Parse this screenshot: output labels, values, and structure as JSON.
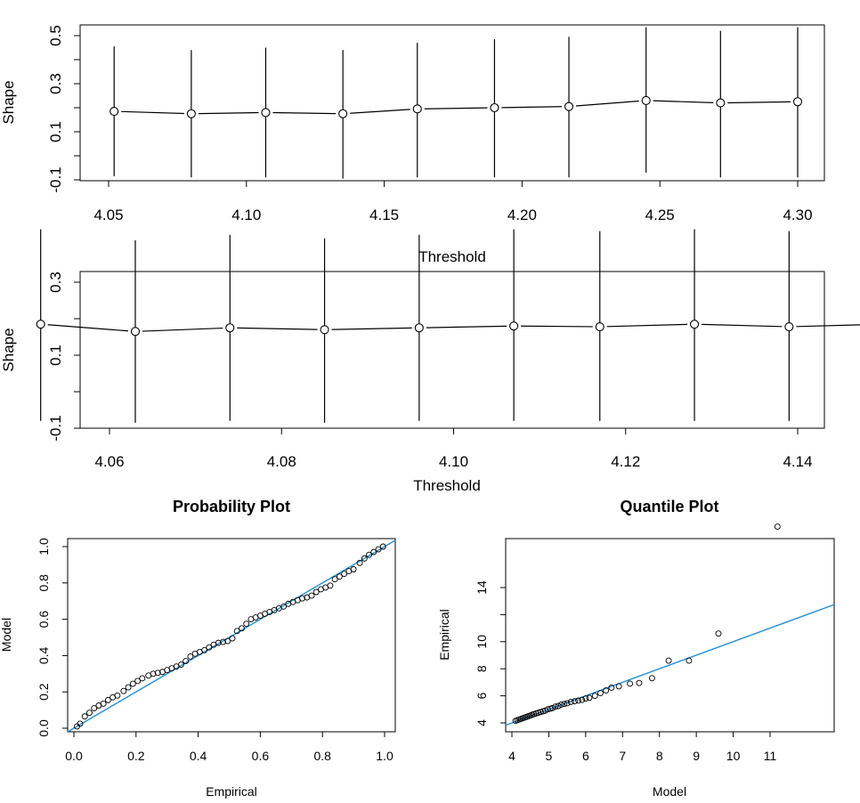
{
  "colors": {
    "fit_line": "#1f8fd6",
    "axis": "#000000",
    "background": "#ffffff"
  },
  "chart_data": [
    {
      "type": "scatter",
      "subtype": "threshold-parameter-stability",
      "title": "",
      "xlabel": "Threshold",
      "ylabel": "Shape",
      "xlim": [
        4.05,
        4.3
      ],
      "ylim": [
        -0.1,
        0.5
      ],
      "x_ticks": [
        "4.05",
        "4.10",
        "4.15",
        "4.20",
        "4.25",
        "4.30"
      ],
      "y_ticks": [
        "-0.1",
        "0.1",
        "0.3",
        "0.5"
      ],
      "points": [
        {
          "x": 4.052,
          "y": 0.185,
          "lower": -0.085,
          "upper": 0.455
        },
        {
          "x": 4.08,
          "y": 0.175,
          "lower": -0.09,
          "upper": 0.44
        },
        {
          "x": 4.107,
          "y": 0.18,
          "lower": -0.09,
          "upper": 0.45
        },
        {
          "x": 4.135,
          "y": 0.175,
          "lower": -0.095,
          "upper": 0.44
        },
        {
          "x": 4.162,
          "y": 0.195,
          "lower": -0.09,
          "upper": 0.47
        },
        {
          "x": 4.19,
          "y": 0.2,
          "lower": -0.09,
          "upper": 0.485
        },
        {
          "x": 4.217,
          "y": 0.205,
          "lower": -0.09,
          "upper": 0.495
        },
        {
          "x": 4.245,
          "y": 0.23,
          "lower": -0.07,
          "upper": 0.535
        },
        {
          "x": 4.272,
          "y": 0.22,
          "lower": -0.09,
          "upper": 0.52
        },
        {
          "x": 4.3,
          "y": 0.225,
          "lower": -0.09,
          "upper": 0.535
        }
      ]
    },
    {
      "type": "scatter",
      "subtype": "threshold-parameter-stability",
      "title": "",
      "xlabel": "Threshold",
      "ylabel": "Shape",
      "xlim": [
        4.05,
        4.15
      ],
      "ylim": [
        -0.1,
        0.45
      ],
      "x_ticks": [
        "4.06",
        "4.08",
        "4.10",
        "4.12",
        "4.14"
      ],
      "y_ticks": [
        "-0.1",
        "0.1",
        "0.3"
      ],
      "points": [
        {
          "x": 4.052,
          "y": 0.185,
          "lower": -0.08,
          "upper": 0.445
        },
        {
          "x": 4.063,
          "y": 0.165,
          "lower": -0.085,
          "upper": 0.415
        },
        {
          "x": 4.074,
          "y": 0.175,
          "lower": -0.08,
          "upper": 0.43
        },
        {
          "x": 4.085,
          "y": 0.17,
          "lower": -0.085,
          "upper": 0.42
        },
        {
          "x": 4.096,
          "y": 0.175,
          "lower": -0.08,
          "upper": 0.43
        },
        {
          "x": 4.107,
          "y": 0.18,
          "lower": -0.08,
          "upper": 0.445
        },
        {
          "x": 4.117,
          "y": 0.178,
          "lower": -0.08,
          "upper": 0.44
        },
        {
          "x": 4.128,
          "y": 0.185,
          "lower": -0.08,
          "upper": 0.445
        },
        {
          "x": 4.139,
          "y": 0.178,
          "lower": -0.08,
          "upper": 0.44
        },
        {
          "x": 4.15,
          "y": 0.185,
          "lower": -0.08,
          "upper": 0.45
        }
      ]
    },
    {
      "type": "scatter",
      "subtype": "probability-plot",
      "title": "Probability Plot",
      "xlabel": "Empirical",
      "ylabel": "Model",
      "xlim": [
        -0.02,
        1.04
      ],
      "ylim": [
        -0.02,
        1.04
      ],
      "x_ticks": [
        "0.0",
        "0.2",
        "0.4",
        "0.6",
        "0.8",
        "1.0"
      ],
      "y_ticks": [
        "0.0",
        "0.2",
        "0.4",
        "0.6",
        "0.8",
        "1.0"
      ],
      "reference_line": {
        "intercept": 0,
        "slope": 1
      },
      "points": [
        {
          "x": 0.01,
          "y": 0.01
        },
        {
          "x": 0.02,
          "y": 0.025
        },
        {
          "x": 0.035,
          "y": 0.065
        },
        {
          "x": 0.05,
          "y": 0.085
        },
        {
          "x": 0.065,
          "y": 0.11
        },
        {
          "x": 0.08,
          "y": 0.125
        },
        {
          "x": 0.095,
          "y": 0.135
        },
        {
          "x": 0.11,
          "y": 0.155
        },
        {
          "x": 0.125,
          "y": 0.17
        },
        {
          "x": 0.14,
          "y": 0.18
        },
        {
          "x": 0.16,
          "y": 0.205
        },
        {
          "x": 0.175,
          "y": 0.225
        },
        {
          "x": 0.19,
          "y": 0.245
        },
        {
          "x": 0.205,
          "y": 0.26
        },
        {
          "x": 0.22,
          "y": 0.275
        },
        {
          "x": 0.24,
          "y": 0.29
        },
        {
          "x": 0.255,
          "y": 0.3
        },
        {
          "x": 0.27,
          "y": 0.305
        },
        {
          "x": 0.285,
          "y": 0.31
        },
        {
          "x": 0.3,
          "y": 0.32
        },
        {
          "x": 0.315,
          "y": 0.33
        },
        {
          "x": 0.33,
          "y": 0.34
        },
        {
          "x": 0.345,
          "y": 0.35
        },
        {
          "x": 0.36,
          "y": 0.37
        },
        {
          "x": 0.375,
          "y": 0.395
        },
        {
          "x": 0.39,
          "y": 0.41
        },
        {
          "x": 0.405,
          "y": 0.42
        },
        {
          "x": 0.42,
          "y": 0.43
        },
        {
          "x": 0.435,
          "y": 0.445
        },
        {
          "x": 0.45,
          "y": 0.46
        },
        {
          "x": 0.465,
          "y": 0.47
        },
        {
          "x": 0.48,
          "y": 0.475
        },
        {
          "x": 0.495,
          "y": 0.48
        },
        {
          "x": 0.51,
          "y": 0.495
        },
        {
          "x": 0.525,
          "y": 0.535
        },
        {
          "x": 0.54,
          "y": 0.55
        },
        {
          "x": 0.555,
          "y": 0.575
        },
        {
          "x": 0.57,
          "y": 0.6
        },
        {
          "x": 0.585,
          "y": 0.61
        },
        {
          "x": 0.6,
          "y": 0.62
        },
        {
          "x": 0.615,
          "y": 0.63
        },
        {
          "x": 0.63,
          "y": 0.64
        },
        {
          "x": 0.645,
          "y": 0.65
        },
        {
          "x": 0.66,
          "y": 0.66
        },
        {
          "x": 0.675,
          "y": 0.67
        },
        {
          "x": 0.69,
          "y": 0.685
        },
        {
          "x": 0.705,
          "y": 0.695
        },
        {
          "x": 0.72,
          "y": 0.705
        },
        {
          "x": 0.735,
          "y": 0.715
        },
        {
          "x": 0.75,
          "y": 0.72
        },
        {
          "x": 0.765,
          "y": 0.73
        },
        {
          "x": 0.78,
          "y": 0.75
        },
        {
          "x": 0.795,
          "y": 0.765
        },
        {
          "x": 0.81,
          "y": 0.775
        },
        {
          "x": 0.825,
          "y": 0.785
        },
        {
          "x": 0.84,
          "y": 0.82
        },
        {
          "x": 0.855,
          "y": 0.835
        },
        {
          "x": 0.87,
          "y": 0.85
        },
        {
          "x": 0.885,
          "y": 0.865
        },
        {
          "x": 0.9,
          "y": 0.875
        },
        {
          "x": 0.92,
          "y": 0.91
        },
        {
          "x": 0.935,
          "y": 0.935
        },
        {
          "x": 0.95,
          "y": 0.955
        },
        {
          "x": 0.965,
          "y": 0.97
        },
        {
          "x": 0.98,
          "y": 0.985
        },
        {
          "x": 0.995,
          "y": 1.0
        }
      ]
    },
    {
      "type": "scatter",
      "subtype": "quantile-plot",
      "title": "Quantile Plot",
      "xlabel": "Model",
      "ylabel": "Empirical",
      "xlim": [
        3.8,
        11.5
      ],
      "ylim": [
        3.6,
        19.0
      ],
      "x_ticks": [
        "4",
        "5",
        "6",
        "7",
        "8",
        "9",
        "10",
        "11"
      ],
      "y_ticks": [
        "4",
        "6",
        "8",
        "10",
        "14"
      ],
      "y_tick_values": [
        4,
        6,
        8,
        10,
        14
      ],
      "reference_line": {
        "intercept": 0,
        "slope": 1
      },
      "points": [
        {
          "x": 4.1,
          "y": 4.15
        },
        {
          "x": 4.15,
          "y": 4.2
        },
        {
          "x": 4.2,
          "y": 4.25
        },
        {
          "x": 4.25,
          "y": 4.3
        },
        {
          "x": 4.3,
          "y": 4.35
        },
        {
          "x": 4.35,
          "y": 4.4
        },
        {
          "x": 4.4,
          "y": 4.45
        },
        {
          "x": 4.45,
          "y": 4.5
        },
        {
          "x": 4.5,
          "y": 4.55
        },
        {
          "x": 4.55,
          "y": 4.6
        },
        {
          "x": 4.6,
          "y": 4.65
        },
        {
          "x": 4.66,
          "y": 4.7
        },
        {
          "x": 4.72,
          "y": 4.75
        },
        {
          "x": 4.78,
          "y": 4.8
        },
        {
          "x": 4.84,
          "y": 4.85
        },
        {
          "x": 4.9,
          "y": 4.9
        },
        {
          "x": 4.97,
          "y": 5.0
        },
        {
          "x": 5.04,
          "y": 5.05
        },
        {
          "x": 5.1,
          "y": 5.1
        },
        {
          "x": 5.18,
          "y": 5.2
        },
        {
          "x": 5.26,
          "y": 5.25
        },
        {
          "x": 5.34,
          "y": 5.35
        },
        {
          "x": 5.42,
          "y": 5.4
        },
        {
          "x": 5.5,
          "y": 5.45
        },
        {
          "x": 5.6,
          "y": 5.55
        },
        {
          "x": 5.7,
          "y": 5.6
        },
        {
          "x": 5.8,
          "y": 5.65
        },
        {
          "x": 5.9,
          "y": 5.7
        },
        {
          "x": 6.0,
          "y": 5.8
        },
        {
          "x": 6.1,
          "y": 5.85
        },
        {
          "x": 6.25,
          "y": 6.0
        },
        {
          "x": 6.4,
          "y": 6.2
        },
        {
          "x": 6.55,
          "y": 6.4
        },
        {
          "x": 6.7,
          "y": 6.6
        },
        {
          "x": 6.9,
          "y": 6.7
        },
        {
          "x": 7.2,
          "y": 6.9
        },
        {
          "x": 7.45,
          "y": 6.95
        },
        {
          "x": 7.8,
          "y": 7.3
        },
        {
          "x": 8.25,
          "y": 8.6
        },
        {
          "x": 8.8,
          "y": 8.6
        },
        {
          "x": 9.6,
          "y": 10.6
        },
        {
          "x": 11.2,
          "y": 18.5
        }
      ]
    }
  ]
}
